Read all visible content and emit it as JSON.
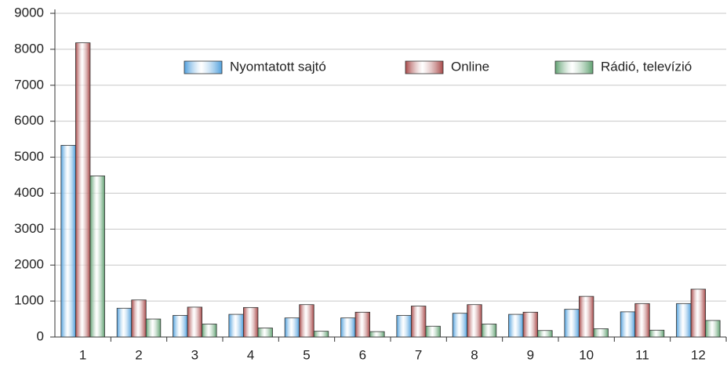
{
  "chart_data": {
    "type": "bar",
    "categories": [
      "1",
      "2",
      "3",
      "4",
      "5",
      "6",
      "7",
      "8",
      "9",
      "10",
      "11",
      "12"
    ],
    "series": [
      {
        "name": "Nyomtatott sajtó",
        "color": "#4f9fdc",
        "values": [
          5330,
          800,
          600,
          630,
          530,
          530,
          600,
          660,
          630,
          770,
          700,
          930
        ]
      },
      {
        "name": "Online",
        "color": "#a84848",
        "values": [
          8180,
          1030,
          830,
          820,
          900,
          690,
          860,
          900,
          690,
          1130,
          930,
          1330
        ]
      },
      {
        "name": "Rádió, televízió",
        "color": "#5fa070",
        "values": [
          4480,
          500,
          360,
          250,
          160,
          150,
          300,
          360,
          180,
          230,
          190,
          460
        ]
      }
    ],
    "ylim": [
      0,
      9000
    ],
    "yticks": [
      0,
      1000,
      2000,
      3000,
      4000,
      5000,
      6000,
      7000,
      8000,
      9000
    ],
    "grid": true,
    "legend": "top"
  }
}
